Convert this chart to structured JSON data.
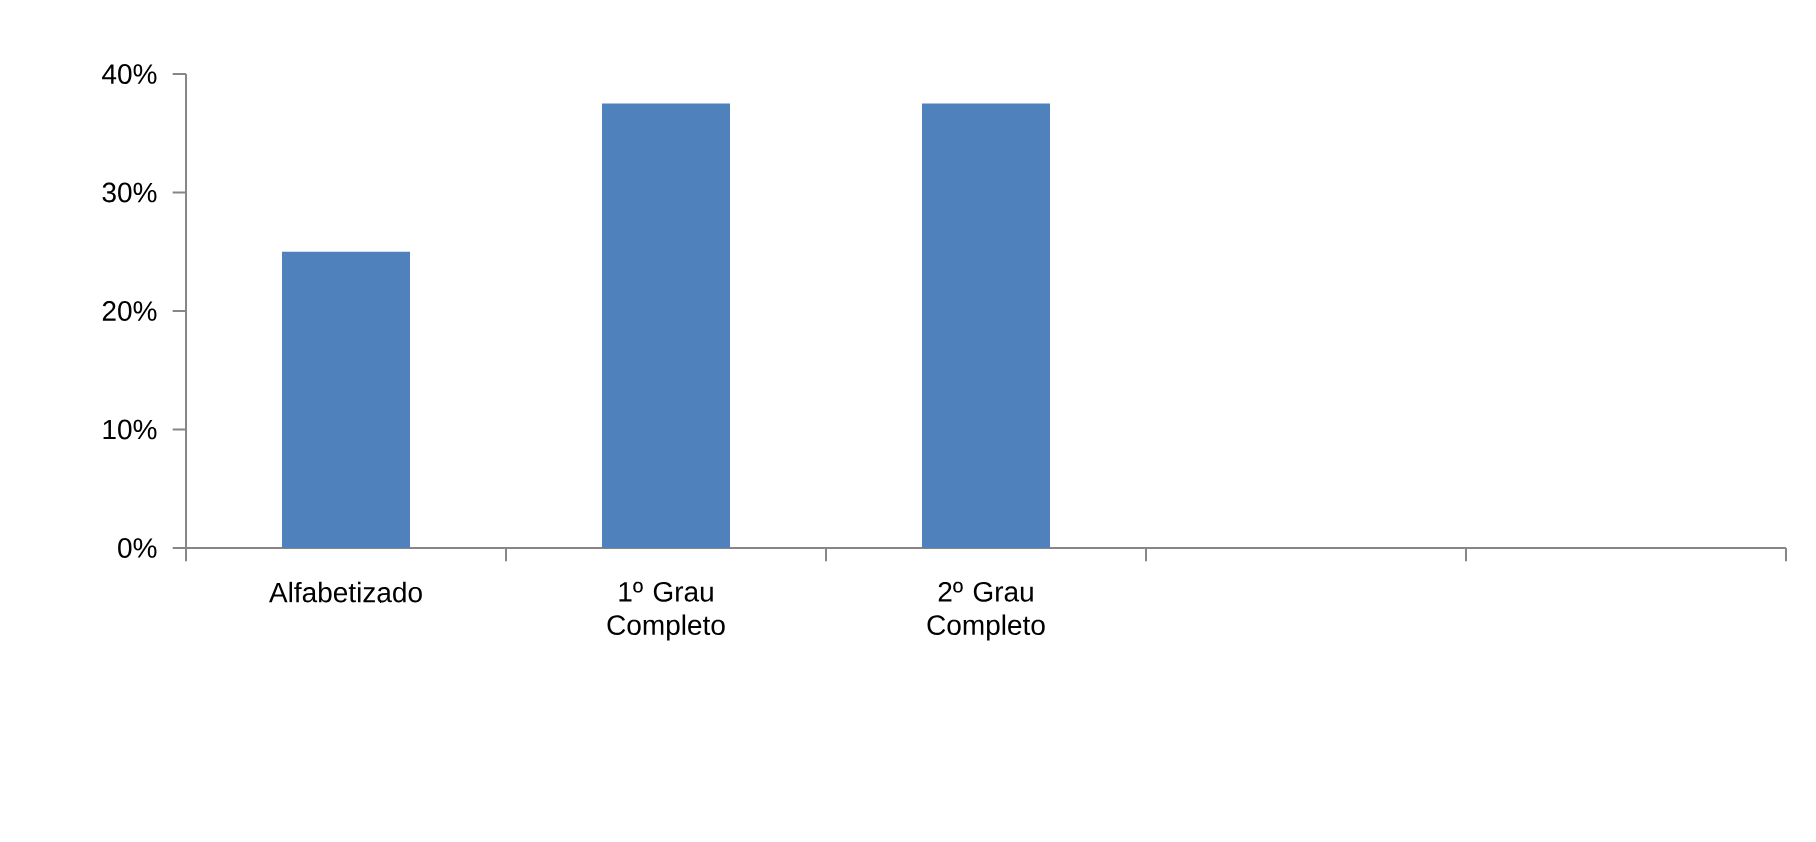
{
  "chart_data": {
    "type": "bar",
    "categories": [
      "Alfabetizado",
      "1º Grau Completo",
      "2º Grau Completo",
      null,
      null
    ],
    "values": [
      25,
      37.5,
      37.5,
      null,
      null
    ],
    "color": "#4f81bd",
    "ylim": [
      0,
      40
    ],
    "yticks": [
      {
        "value": 0,
        "label": "0%"
      },
      {
        "value": 10,
        "label": "10%"
      },
      {
        "value": 20,
        "label": "20%"
      },
      {
        "value": 30,
        "label": "30%"
      },
      {
        "value": 40,
        "label": "40%"
      }
    ]
  }
}
